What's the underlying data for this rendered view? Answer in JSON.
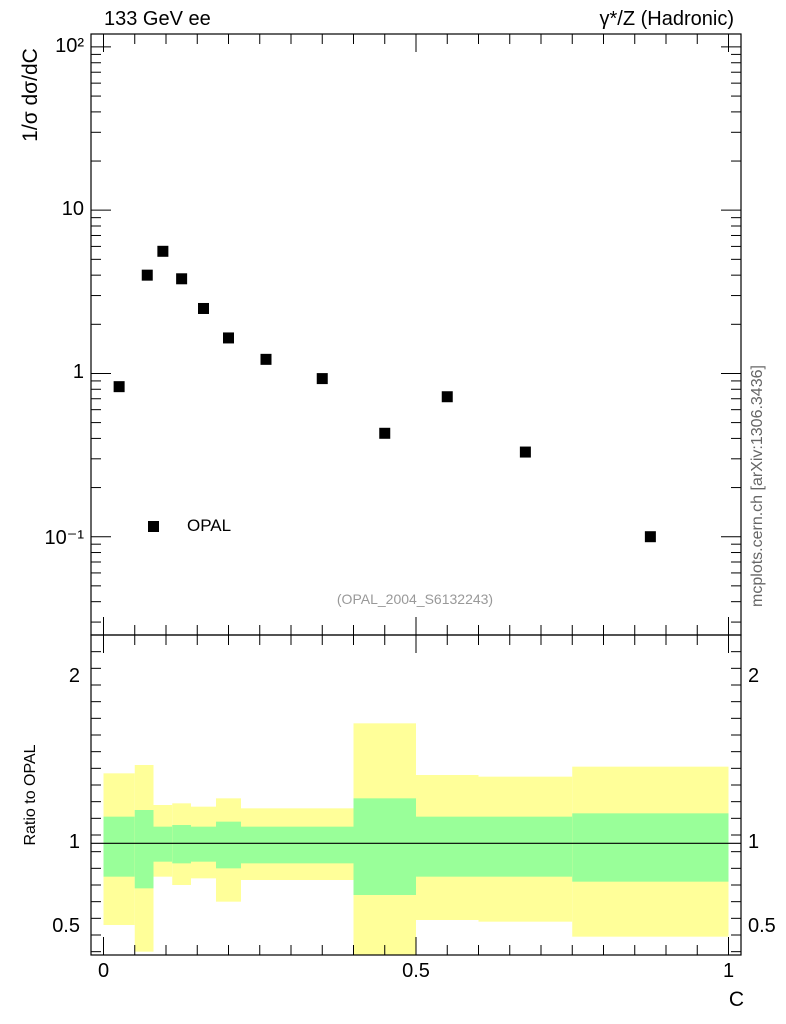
{
  "header": {
    "left_title": "133 GeV ee",
    "right_title": "γ*/Z (Hadronic)"
  },
  "side_credit": "mcplots.cern.ch [arXiv:1306.3436]",
  "watermark": "(OPAL_2004_S6132243)",
  "chart_data": [
    {
      "type": "scatter",
      "panel": "main",
      "ylabel": "1/σ dσ/dC",
      "yscale": "log",
      "ylim": [
        0.025,
        120
      ],
      "xlim": [
        -0.02,
        1.02
      ],
      "y_tick_labels": [
        "10⁻¹",
        "1",
        "10",
        "10²"
      ],
      "legend": {
        "entries": [
          "OPAL"
        ],
        "placement": "bottom-left"
      },
      "series": [
        {
          "name": "OPAL",
          "marker": "square",
          "color": "#000000",
          "x": [
            0.025,
            0.07,
            0.095,
            0.125,
            0.16,
            0.2,
            0.26,
            0.35,
            0.45,
            0.55,
            0.675,
            0.875
          ],
          "y": [
            0.83,
            4.0,
            5.6,
            3.8,
            2.5,
            1.65,
            1.22,
            0.93,
            0.43,
            0.72,
            0.33,
            0.1
          ]
        }
      ]
    },
    {
      "type": "area",
      "panel": "ratio",
      "ylabel": "Ratio to OPAL",
      "xlabel": "C",
      "ylim": [
        0.33,
        2.25
      ],
      "xlim": [
        -0.02,
        1.02
      ],
      "x_tick_labels": [
        "0",
        "0.5",
        "1"
      ],
      "y_tick_labels": [
        "0.5",
        "1",
        "2"
      ],
      "reference_line": 1,
      "bins": [
        {
          "x": [
            0.0,
            0.05
          ],
          "inner": [
            0.8,
            1.16
          ],
          "outer": [
            0.51,
            1.42
          ]
        },
        {
          "x": [
            0.05,
            0.08
          ],
          "inner": [
            0.73,
            1.2
          ],
          "outer": [
            0.35,
            1.47
          ]
        },
        {
          "x": [
            0.08,
            0.11
          ],
          "inner": [
            0.89,
            1.1
          ],
          "outer": [
            0.8,
            1.23
          ]
        },
        {
          "x": [
            0.11,
            0.14
          ],
          "inner": [
            0.88,
            1.11
          ],
          "outer": [
            0.75,
            1.24
          ]
        },
        {
          "x": [
            0.14,
            0.18
          ],
          "inner": [
            0.89,
            1.1
          ],
          "outer": [
            0.79,
            1.22
          ]
        },
        {
          "x": [
            0.18,
            0.22
          ],
          "inner": [
            0.85,
            1.13
          ],
          "outer": [
            0.65,
            1.27
          ]
        },
        {
          "x": [
            0.22,
            0.3
          ],
          "inner": [
            0.88,
            1.1
          ],
          "outer": [
            0.78,
            1.21
          ]
        },
        {
          "x": [
            0.3,
            0.4
          ],
          "inner": [
            0.88,
            1.1
          ],
          "outer": [
            0.78,
            1.21
          ]
        },
        {
          "x": [
            0.4,
            0.5
          ],
          "inner": [
            0.69,
            1.27
          ],
          "outer": [
            0.33,
            1.72
          ]
        },
        {
          "x": [
            0.5,
            0.6
          ],
          "inner": [
            0.8,
            1.16
          ],
          "outer": [
            0.54,
            1.41
          ]
        },
        {
          "x": [
            0.6,
            0.75
          ],
          "inner": [
            0.8,
            1.16
          ],
          "outer": [
            0.53,
            1.4
          ]
        },
        {
          "x": [
            0.75,
            1.0
          ],
          "inner": [
            0.77,
            1.18
          ],
          "outer": [
            0.44,
            1.46
          ]
        }
      ]
    }
  ],
  "colors": {
    "inner_band": "#99ff99",
    "outer_band": "#ffff99",
    "axis": "#000000",
    "marker": "#000000"
  }
}
